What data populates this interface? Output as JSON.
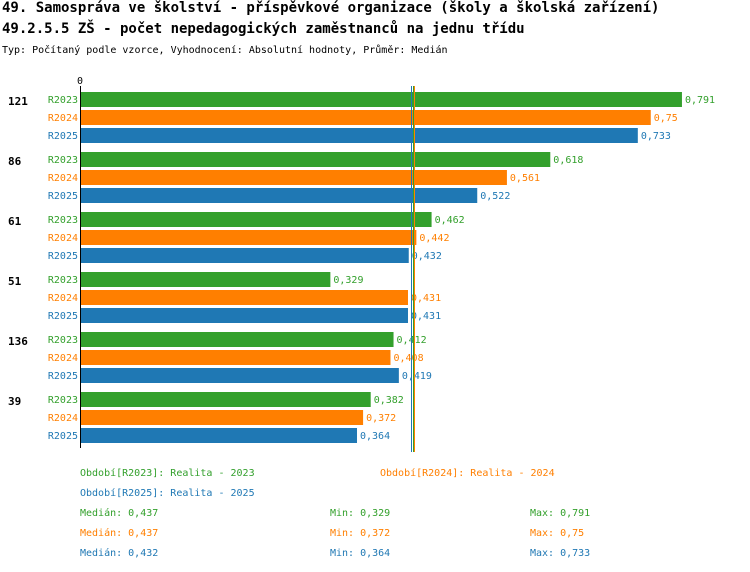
{
  "header": {
    "title_line1": "49. Samospráva ve školství - příspěvkové organizace (školy a školská zařízení)",
    "title_line2": "49.2.5.5 ZŠ - počet nepedagogických zaměstnanců na jednu třídu",
    "subtitle": "Typ: Počítaný podle vzorce, Vyhodnocení: Absolutní hodnoty, Průměr: Medián"
  },
  "colors": {
    "R2023": "#33a02c",
    "R2024": "#ff7f00",
    "R2025": "#1f78b4"
  },
  "chart_data": {
    "type": "bar",
    "orientation": "horizontal",
    "axis_zero_label": "0",
    "xlim": [
      0,
      0.82
    ],
    "series_names": [
      "R2023",
      "R2024",
      "R2025"
    ],
    "groups": [
      {
        "label": "121",
        "values": [
          0.791,
          0.75,
          0.733
        ],
        "value_labels": [
          "0,791",
          "0,75",
          "0,733"
        ]
      },
      {
        "label": "86",
        "values": [
          0.618,
          0.561,
          0.522
        ],
        "value_labels": [
          "0,618",
          "0,561",
          "0,522"
        ]
      },
      {
        "label": "61",
        "values": [
          0.462,
          0.442,
          0.432
        ],
        "value_labels": [
          "0,462",
          "0,442",
          "0,432"
        ]
      },
      {
        "label": "51",
        "values": [
          0.329,
          0.431,
          0.431
        ],
        "value_labels": [
          "0,329",
          "0,431",
          "0,431"
        ]
      },
      {
        "label": "136",
        "values": [
          0.412,
          0.408,
          0.419
        ],
        "value_labels": [
          "0,412",
          "0,408",
          "0,419"
        ]
      },
      {
        "label": "39",
        "values": [
          0.382,
          0.372,
          0.364
        ],
        "value_labels": [
          "0,382",
          "0,372",
          "0,364"
        ]
      }
    ],
    "median_lines": [
      {
        "series": "R2023",
        "value": 0.437
      },
      {
        "series": "R2024",
        "value": 0.437
      },
      {
        "series": "R2025",
        "value": 0.432
      }
    ]
  },
  "legend": {
    "periods": [
      {
        "series": "R2023",
        "text": "Období[R2023]: Realita - 2023"
      },
      {
        "series": "R2024",
        "text": "Období[R2024]: Realita - 2024"
      },
      {
        "series": "R2025",
        "text": "Období[R2025]: Realita - 2025"
      }
    ],
    "stats": [
      {
        "series": "R2023",
        "median": "Medián: 0,437",
        "min": "Min: 0,329",
        "max": "Max: 0,791"
      },
      {
        "series": "R2024",
        "median": "Medián: 0,437",
        "min": "Min: 0,372",
        "max": "Max: 0,75"
      },
      {
        "series": "R2025",
        "median": "Medián: 0,432",
        "min": "Min: 0,364",
        "max": "Max: 0,733"
      }
    ]
  }
}
